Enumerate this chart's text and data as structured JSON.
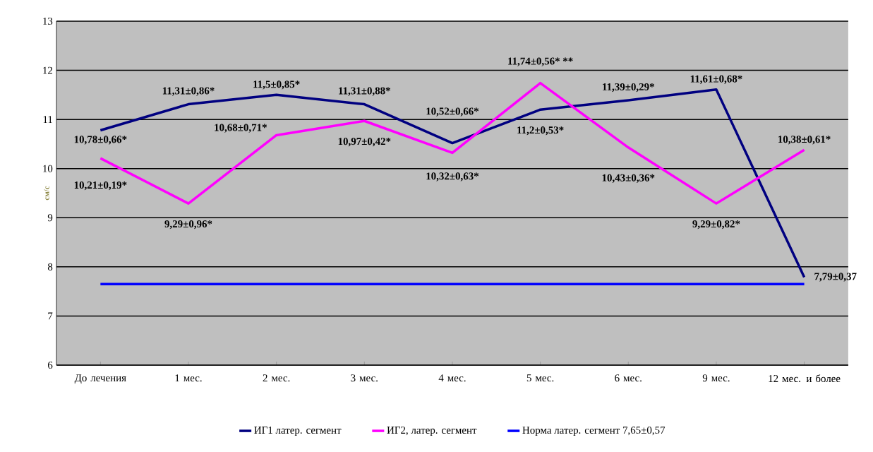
{
  "chart_data": {
    "type": "line",
    "ylabel": "см/с",
    "categories": [
      "До лечения",
      "1 мес.",
      "2 мес.",
      "3 мес.",
      "4 мес.",
      "5 мес.",
      "6 мес.",
      "9 мес.",
      "12 мес. и более"
    ],
    "series": [
      {
        "name": "ИГ1 латер. сегмент",
        "color": "#000080",
        "values": [
          10.78,
          11.31,
          11.5,
          11.31,
          10.52,
          11.2,
          11.39,
          11.61,
          7.79
        ],
        "value_labels": [
          "10,78±0,66*",
          "11,31±0,86*",
          "11,5±0,85*",
          "11,31±0,88*",
          "10,52±0,66*",
          "11,2±0,53*",
          "11,39±0,29*",
          "11,61±0,68*",
          "7,79±0,37"
        ]
      },
      {
        "name": "ИГ2, латер. сегмент",
        "color": "#ff00ff",
        "values": [
          10.21,
          9.29,
          10.68,
          10.97,
          10.32,
          11.74,
          10.43,
          9.29,
          10.38
        ],
        "value_labels": [
          "10,21±0,19*",
          "9,29±0,96*",
          "10,68±0,71*",
          "10,97±0,42*",
          "10,32±0,63*",
          "11,74±0,56* **",
          "10,43±0,36*",
          "9,29±0,82*",
          "10,38±0,61*"
        ]
      },
      {
        "name": "Норма латер. сегмент 7,65±0,57",
        "color": "#0000ff",
        "values": [
          7.65,
          7.65,
          7.65,
          7.65,
          7.65,
          7.65,
          7.65,
          7.65,
          7.65
        ]
      }
    ],
    "ylim": [
      6,
      13
    ],
    "yticks": [
      6,
      7,
      8,
      9,
      10,
      11,
      12,
      13
    ],
    "grid": "y",
    "legend": "bottom",
    "marker": "none",
    "line_style": "solid"
  }
}
